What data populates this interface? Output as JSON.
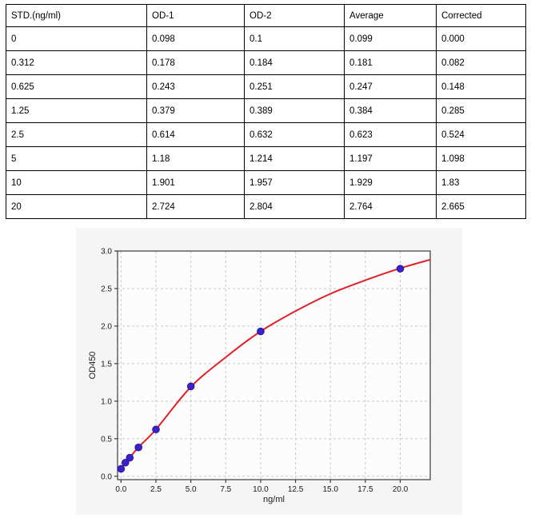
{
  "table": {
    "columns": [
      "STD.(ng/ml)",
      "OD-1",
      "OD-2",
      "Average",
      "Corrected"
    ],
    "rows": [
      [
        "0",
        "0.098",
        "0.1",
        "0.099",
        "0.000"
      ],
      [
        "0.312",
        "0.178",
        "0.184",
        "0.181",
        "0.082"
      ],
      [
        "0.625",
        "0.243",
        "0.251",
        "0.247",
        "0.148"
      ],
      [
        "1.25",
        "0.379",
        "0.389",
        "0.384",
        "0.285"
      ],
      [
        "2.5",
        "0.614",
        "0.632",
        "0.623",
        "0.524"
      ],
      [
        "5",
        "1.18",
        "1.214",
        "1.197",
        "1.098"
      ],
      [
        "10",
        "1.901",
        "1.957",
        "1.929",
        "1.83"
      ],
      [
        "20",
        "2.724",
        "2.804",
        "2.764",
        "2.665"
      ]
    ]
  },
  "chart_data": {
    "type": "scatter",
    "title": "",
    "xlabel": "ng/ml",
    "ylabel": "OD450",
    "xlim": [
      -0.25,
      22.15
    ],
    "ylim": [
      -0.045,
      3.0
    ],
    "x_ticks": [
      0.0,
      2.5,
      5.0,
      7.5,
      10.0,
      12.5,
      15.0,
      17.5,
      20.0
    ],
    "y_ticks": [
      0.0,
      0.5,
      1.0,
      1.5,
      2.0,
      2.5,
      3.0
    ],
    "grid": true,
    "grid_style": "dashed",
    "points": [
      [
        0,
        0.099
      ],
      [
        0.312,
        0.181
      ],
      [
        0.625,
        0.247
      ],
      [
        1.25,
        0.384
      ],
      [
        2.5,
        0.623
      ],
      [
        5,
        1.197
      ],
      [
        10,
        1.929
      ],
      [
        20,
        2.764
      ]
    ],
    "fit_curve": [
      [
        0,
        0.105
      ],
      [
        0.312,
        0.18
      ],
      [
        0.625,
        0.248
      ],
      [
        1.25,
        0.387
      ],
      [
        2.5,
        0.625
      ],
      [
        5,
        1.19
      ],
      [
        7.5,
        1.585
      ],
      [
        10,
        1.93
      ],
      [
        12.5,
        2.2
      ],
      [
        15,
        2.43
      ],
      [
        17.5,
        2.61
      ],
      [
        20,
        2.77
      ],
      [
        22.15,
        2.885
      ]
    ],
    "colors": {
      "marker": "#3a22c8",
      "marker_edge": "#28159c",
      "line": "#dd2127",
      "grid": "#c9c9c9",
      "spine": "#3a3a3a",
      "tick_text": "#1a1a1a",
      "figure_bg": "#f5f5f5",
      "plot_bg": "#fcfcfc"
    }
  }
}
